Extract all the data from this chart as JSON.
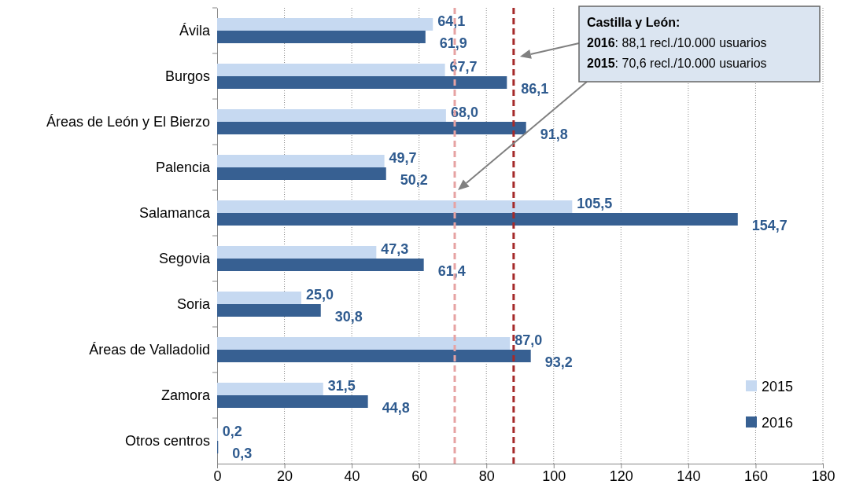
{
  "chart_data": {
    "type": "bar",
    "orientation": "horizontal",
    "categories": [
      "Ávila",
      "Burgos",
      "Áreas de León y El Bierzo",
      "Palencia",
      "Salamanca",
      "Segovia",
      "Soria",
      "Áreas de Valladolid",
      "Zamora",
      "Otros centros"
    ],
    "series": [
      {
        "name": "2015",
        "color": "#c6d9f1",
        "values": [
          64.1,
          67.7,
          68.0,
          49.7,
          105.5,
          47.3,
          25.0,
          87.0,
          31.5,
          0.2
        ],
        "value_labels": [
          "64,1",
          "67,7",
          "68,0",
          "49,7",
          "105,5",
          "47,3",
          "25,0",
          "87,0",
          "31,5",
          "0,2"
        ]
      },
      {
        "name": "2016",
        "color": "#376092",
        "values": [
          61.9,
          86.1,
          91.8,
          50.2,
          154.7,
          61.4,
          30.8,
          93.2,
          44.8,
          0.3
        ],
        "value_labels": [
          "61,9",
          "86,1",
          "91,8",
          "50,2",
          "154,7",
          "61,4",
          "30,8",
          "93,2",
          "44,8",
          "0,3"
        ]
      }
    ],
    "xlim": [
      0,
      180
    ],
    "xticks": [
      0,
      20,
      40,
      60,
      80,
      100,
      120,
      140,
      160,
      180
    ],
    "grid": "x",
    "legend": "bottom right",
    "ref_lines": [
      {
        "axis": "x",
        "value": 70.6,
        "color": "#e6a3a3",
        "line_style": "dashed"
      },
      {
        "axis": "x",
        "value": 88.1,
        "color": "#a52a2a",
        "line_style": "dashed"
      }
    ],
    "annotations": [
      "Castilla y León:",
      "2016: 88,1 recl./10.000 usuarios",
      "2015: 70,6 recl./10.000 usuarios"
    ]
  }
}
